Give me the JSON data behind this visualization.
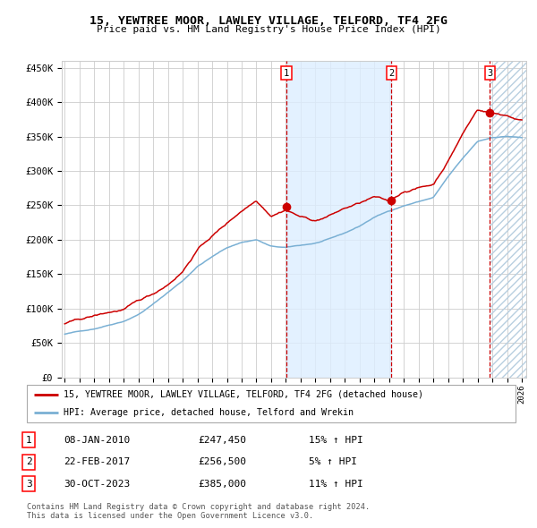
{
  "title": "15, YEWTREE MOOR, LAWLEY VILLAGE, TELFORD, TF4 2FG",
  "subtitle": "Price paid vs. HM Land Registry's House Price Index (HPI)",
  "ylim": [
    0,
    460000
  ],
  "yticks": [
    0,
    50000,
    100000,
    150000,
    200000,
    250000,
    300000,
    350000,
    400000,
    450000
  ],
  "ytick_labels": [
    "£0",
    "£50K",
    "£100K",
    "£150K",
    "£200K",
    "£250K",
    "£300K",
    "£350K",
    "£400K",
    "£450K"
  ],
  "year_start": 1995,
  "year_end": 2026,
  "hpi_color": "#7ab0d4",
  "price_color": "#cc0000",
  "sale1_date": 2010.03,
  "sale1_price": 247450,
  "sale1_label": "1",
  "sale1_display": "08-JAN-2010",
  "sale1_amount": "£247,450",
  "sale1_hpi": "15% ↑ HPI",
  "sale2_date": 2017.15,
  "sale2_price": 256500,
  "sale2_label": "2",
  "sale2_display": "22-FEB-2017",
  "sale2_amount": "£256,500",
  "sale2_hpi": "5% ↑ HPI",
  "sale3_date": 2023.83,
  "sale3_price": 385000,
  "sale3_label": "3",
  "sale3_display": "30-OCT-2023",
  "sale3_amount": "£385,000",
  "sale3_hpi": "11% ↑ HPI",
  "legend_line1": "15, YEWTREE MOOR, LAWLEY VILLAGE, TELFORD, TF4 2FG (detached house)",
  "legend_line2": "HPI: Average price, detached house, Telford and Wrekin",
  "footnote1": "Contains HM Land Registry data © Crown copyright and database right 2024.",
  "footnote2": "This data is licensed under the Open Government Licence v3.0.",
  "bg_color": "#ffffff",
  "grid_color": "#cccccc",
  "shade_color": "#ddeeff"
}
